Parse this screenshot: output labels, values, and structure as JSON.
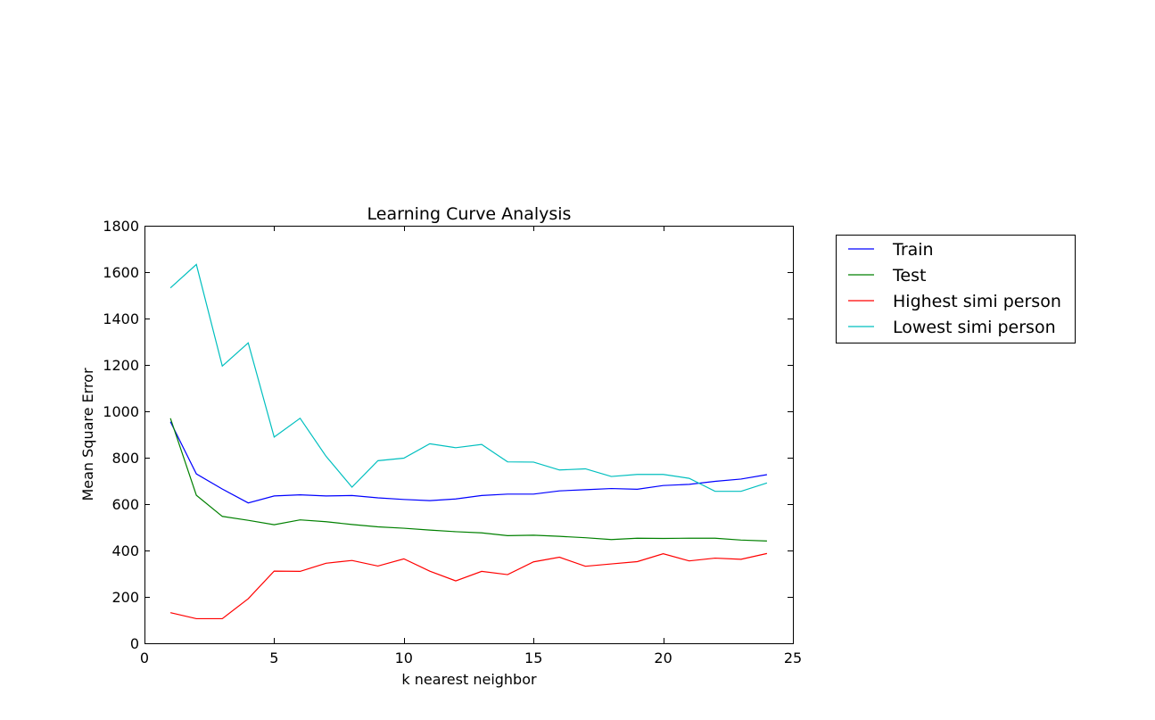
{
  "chart_data": {
    "type": "line",
    "title": "Learning Curve Analysis",
    "xlabel": "k nearest neighbor",
    "ylabel": "Mean Square Error",
    "xlim": [
      0,
      25
    ],
    "ylim": [
      0,
      1800
    ],
    "xticks": [
      0,
      5,
      10,
      15,
      20,
      25
    ],
    "yticks": [
      0,
      200,
      400,
      600,
      800,
      1000,
      1200,
      1400,
      1600,
      1800
    ],
    "grid": false,
    "legend_position": "outside-right",
    "x": [
      1,
      2,
      3,
      4,
      5,
      6,
      7,
      8,
      9,
      10,
      11,
      12,
      13,
      14,
      15,
      16,
      17,
      18,
      19,
      20,
      21,
      22,
      23,
      24
    ],
    "series": [
      {
        "name": "Train",
        "color": "#0000ff",
        "values": [
          955,
          730,
          665,
          605,
          635,
          640,
          635,
          637,
          627,
          620,
          615,
          622,
          637,
          643,
          643,
          657,
          662,
          667,
          664,
          680,
          685,
          698,
          708,
          727
        ]
      },
      {
        "name": "Test",
        "color": "#008000",
        "values": [
          970,
          638,
          547,
          530,
          511,
          532,
          524,
          512,
          502,
          496,
          488,
          481,
          476,
          464,
          466,
          461,
          455,
          447,
          453,
          452,
          453,
          453,
          445,
          441
        ]
      },
      {
        "name": "Highest simi person",
        "color": "#ff0000",
        "values": [
          132,
          106,
          106,
          192,
          311,
          310,
          345,
          357,
          333,
          364,
          311,
          269,
          310,
          296,
          351,
          371,
          332,
          342,
          352,
          386,
          355,
          367,
          362,
          387
        ]
      },
      {
        "name": "Lowest simi person",
        "color": "#00bfbf",
        "values": [
          1532,
          1633,
          1195,
          1295,
          889,
          970,
          806,
          673,
          787,
          798,
          860,
          843,
          857,
          782,
          781,
          747,
          752,
          719,
          728,
          728,
          711,
          655,
          655,
          691
        ]
      }
    ]
  }
}
